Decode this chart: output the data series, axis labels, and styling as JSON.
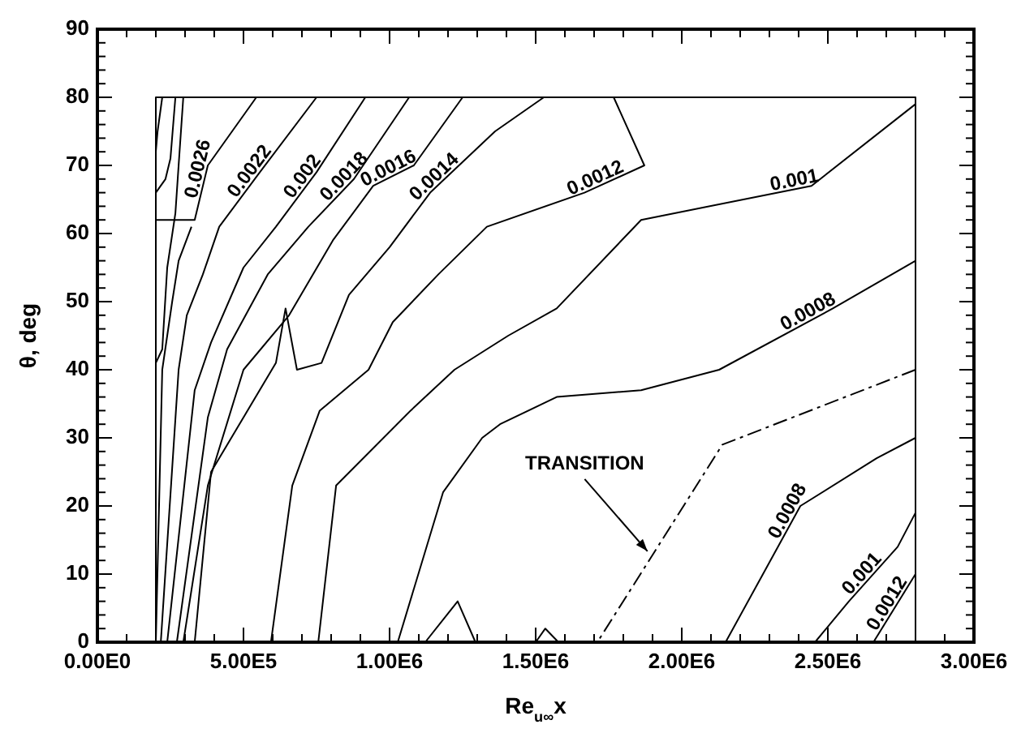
{
  "chart_data": {
    "type": "line",
    "xlabel": "Re$_{u∞}$x",
    "ylabel": "θ, deg",
    "grid": false,
    "line_style": "solid",
    "marker": "none",
    "xlim": [
      0,
      3000000
    ],
    "ylim": [
      0,
      90
    ],
    "xticks": [
      {
        "value": 0,
        "label": "0.00E0"
      },
      {
        "value": 100000,
        "label": null
      },
      {
        "value": 200000,
        "label": null
      },
      {
        "value": 300000,
        "label": null
      },
      {
        "value": 400000,
        "label": null
      },
      {
        "value": 500000,
        "label": "5.00E5"
      },
      {
        "value": 600000,
        "label": null
      },
      {
        "value": 700000,
        "label": null
      },
      {
        "value": 800000,
        "label": null
      },
      {
        "value": 900000,
        "label": null
      },
      {
        "value": 1000000,
        "label": "1.00E6"
      },
      {
        "value": 1100000,
        "label": null
      },
      {
        "value": 1200000,
        "label": null
      },
      {
        "value": 1300000,
        "label": null
      },
      {
        "value": 1400000,
        "label": null
      },
      {
        "value": 1500000,
        "label": "1.50E6"
      },
      {
        "value": 1600000,
        "label": null
      },
      {
        "value": 1700000,
        "label": null
      },
      {
        "value": 1800000,
        "label": null
      },
      {
        "value": 1900000,
        "label": null
      },
      {
        "value": 2000000,
        "label": "2.00E6"
      },
      {
        "value": 2100000,
        "label": null
      },
      {
        "value": 2200000,
        "label": null
      },
      {
        "value": 2300000,
        "label": null
      },
      {
        "value": 2400000,
        "label": null
      },
      {
        "value": 2500000,
        "label": "2.50E6"
      },
      {
        "value": 2600000,
        "label": null
      },
      {
        "value": 2700000,
        "label": null
      },
      {
        "value": 2800000,
        "label": null
      },
      {
        "value": 2900000,
        "label": null
      },
      {
        "value": 3000000,
        "label": "3.00E6"
      }
    ],
    "yticks": [
      0,
      {
        "value": 2,
        "label": null
      },
      {
        "value": 4,
        "label": null
      },
      {
        "value": 6,
        "label": null
      },
      {
        "value": 8,
        "label": null
      },
      10,
      {
        "value": 12,
        "label": null
      },
      {
        "value": 14,
        "label": null
      },
      {
        "value": 16,
        "label": null
      },
      {
        "value": 18,
        "label": null
      },
      20,
      {
        "value": 22,
        "label": null
      },
      {
        "value": 24,
        "label": null
      },
      {
        "value": 26,
        "label": null
      },
      {
        "value": 28,
        "label": null
      },
      30,
      {
        "value": 32,
        "label": null
      },
      {
        "value": 34,
        "label": null
      },
      {
        "value": 36,
        "label": null
      },
      {
        "value": 38,
        "label": null
      },
      40,
      {
        "value": 42,
        "label": null
      },
      {
        "value": 44,
        "label": null
      },
      {
        "value": 46,
        "label": null
      },
      {
        "value": 48,
        "label": null
      },
      50,
      {
        "value": 52,
        "label": null
      },
      {
        "value": 54,
        "label": null
      },
      {
        "value": 56,
        "label": null
      },
      {
        "value": 58,
        "label": null
      },
      60,
      {
        "value": 62,
        "label": null
      },
      {
        "value": 64,
        "label": null
      },
      {
        "value": 66,
        "label": null
      },
      {
        "value": 68,
        "label": null
      },
      70,
      {
        "value": 72,
        "label": null
      },
      {
        "value": 74,
        "label": null
      },
      {
        "value": 76,
        "label": null
      },
      {
        "value": 78,
        "label": null
      },
      80,
      {
        "value": 82,
        "label": null
      },
      {
        "value": 84,
        "label": null
      },
      {
        "value": 86,
        "label": null
      },
      {
        "value": 88,
        "label": null
      },
      90
    ],
    "annotations": [
      {
        "text": "TRANSITION",
        "x": 1890000,
        "y": 13
      }
    ],
    "series": [
      {
        "color": "#000000",
        "x": [
          200000,
          200000,
          2800000,
          2800000
        ],
        "values": [
          0,
          80,
          80,
          0
        ]
      },
      {
        "color": "#000000",
        "x": [
          222000,
          206000,
          200000
        ],
        "values": [
          80,
          75,
          72
        ]
      },
      {
        "color": "#000000",
        "x": [
          267000,
          250000,
          233000,
          200000
        ],
        "values": [
          80,
          71,
          68,
          66
        ]
      },
      {
        "color": "#000000",
        "x": [
          294000,
          278000,
          267000,
          239000,
          222000,
          200000
        ],
        "values": [
          80,
          70,
          63,
          55,
          43,
          41
        ]
      },
      {
        "name": "0.0026",
        "color": "#000000",
        "x": [
          544000,
          378000,
          333000,
          200000
        ],
        "values": [
          80,
          70,
          62,
          62
        ]
      },
      {
        "color": "#000000",
        "x": [
          322000,
          278000,
          256000,
          222000,
          200000
        ],
        "values": [
          61,
          56,
          50,
          40,
          0
        ]
      },
      {
        "name": "0.0022",
        "color": "#000000",
        "x": [
          750000,
          556000,
          417000,
          361000,
          306000,
          278000,
          217000
        ],
        "values": [
          80,
          69,
          61,
          54,
          48,
          40,
          0
        ]
      },
      {
        "name": "0.002",
        "color": "#000000",
        "x": [
          917000,
          750000,
          611000,
          500000,
          389000,
          333000,
          239000
        ],
        "values": [
          80,
          69,
          61,
          55,
          44,
          37,
          0
        ]
      },
      {
        "name": "0.0018",
        "color": "#000000",
        "x": [
          1067000,
          878000,
          722000,
          583000,
          444000,
          378000,
          272000
        ],
        "values": [
          80,
          68,
          61,
          54,
          43,
          33,
          0
        ]
      },
      {
        "name": "0.0016",
        "color": "#000000",
        "x": [
          1250000,
          1083000,
          944000,
          806000,
          656000,
          500000,
          378000,
          294000
        ],
        "values": [
          80,
          70,
          67,
          59,
          48,
          40,
          23,
          0
        ]
      },
      {
        "name": "0.0014",
        "color": "#000000",
        "x": [
          1528000,
          1361000,
          1139000,
          1000000,
          861000,
          767000,
          683000,
          644000,
          611000,
          389000,
          333000
        ],
        "values": [
          80,
          75,
          66,
          58,
          51,
          41,
          40,
          49,
          41,
          25,
          0
        ]
      },
      {
        "name": "0.0012",
        "color": "#000000",
        "x": [
          1767000,
          1872000,
          1667000,
          1333000,
          1167000,
          1011000,
          928000,
          761000,
          667000,
          594000
        ],
        "values": [
          80,
          70,
          66,
          61,
          54,
          47,
          40,
          34,
          23,
          0
        ]
      },
      {
        "name": "0.001",
        "color": "#000000",
        "x": [
          2800000,
          2444000,
          1861000,
          1572000,
          1406000,
          1222000,
          1072000,
          817000,
          756000
        ],
        "values": [
          79,
          67,
          62,
          49,
          45,
          40,
          34,
          23,
          0
        ]
      },
      {
        "name": "0.0008",
        "color": "#000000",
        "x": [
          2800000,
          2517000,
          2128000,
          1861000,
          1572000,
          1378000,
          1317000,
          1183000,
          1028000
        ],
        "values": [
          56,
          49,
          40,
          37,
          36,
          32,
          30,
          22,
          0
        ]
      },
      {
        "color": "#000000",
        "x": [
          1122000,
          1233000,
          1294000
        ],
        "values": [
          0,
          6,
          0
        ]
      },
      {
        "color": "#000000",
        "x": [
          1500000,
          1533000,
          1578000
        ],
        "values": [
          0,
          2,
          0
        ]
      },
      {
        "color": "#000000",
        "line_style": "dashed",
        "x": [
          2800000,
          2139000,
          1711000
        ],
        "values": [
          40,
          29,
          0
        ]
      },
      {
        "name": "0.0008",
        "color": "#000000",
        "x": [
          2800000,
          2667000,
          2406000,
          2150000
        ],
        "values": [
          30,
          27,
          20,
          0
        ]
      },
      {
        "name": "0.001",
        "color": "#000000",
        "x": [
          2800000,
          2739000,
          2572000,
          2456000
        ],
        "values": [
          19,
          14,
          6,
          0
        ]
      },
      {
        "name": "0.0012",
        "color": "#000000",
        "x": [
          2800000,
          2656000
        ],
        "values": [
          10,
          0
        ]
      }
    ]
  }
}
